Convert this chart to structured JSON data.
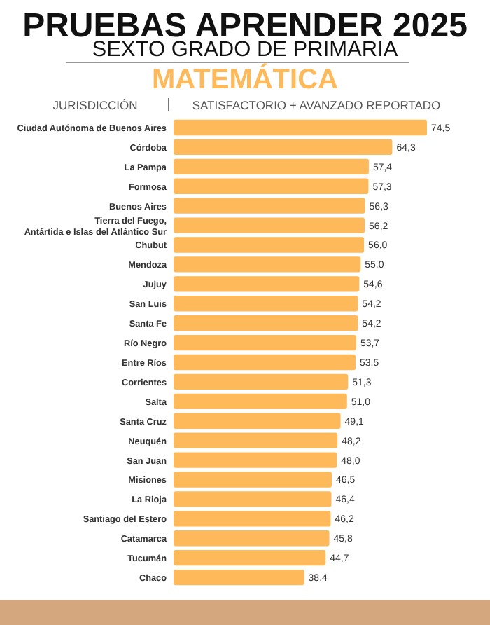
{
  "chart_data": {
    "type": "bar",
    "orientation": "horizontal",
    "title": "PRUEBAS APRENDER 2025",
    "subtitle": "SEXTO GRADO DE PRIMARIA",
    "annotations": [
      "MATEMÁTICA"
    ],
    "ylabel": "JURISDICCIÓN",
    "xlabel": "SATISFACTORIO + AVANZADO REPORTADO",
    "categories": [
      "Ciudad Autónoma de Buenos Aires",
      "Córdoba",
      "La Pampa",
      "Formosa",
      "Buenos Aires",
      "Tierra del Fuego, Antártida e Islas del Atlántico Sur",
      "Chubut",
      "Mendoza",
      "Jujuy",
      "San Luis",
      "Santa Fe",
      "Río Negro",
      "Entre Ríos",
      "Corrientes",
      "Salta",
      "Santa Cruz",
      "Neuquén",
      "San Juan",
      "Misiones",
      "La Rioja",
      "Santiago del Estero",
      "Catamarca",
      "Tucumán",
      "Chaco"
    ],
    "values": [
      74.5,
      64.3,
      57.4,
      57.3,
      56.3,
      56.2,
      56.0,
      55.0,
      54.6,
      54.2,
      54.2,
      53.7,
      53.5,
      51.3,
      51.0,
      49.1,
      48.2,
      48.0,
      46.5,
      46.4,
      46.2,
      45.8,
      44.7,
      38.4
    ],
    "value_labels": [
      "74,5",
      "64,3",
      "57,4",
      "57,3",
      "56,3",
      "56,2",
      "56,0",
      "55,0",
      "54,6",
      "54,2",
      "54,2",
      "53,7",
      "53,5",
      "51,3",
      "51,0",
      "49,1",
      "48,2",
      "48,0",
      "46,5",
      "46,4",
      "46,2",
      "45,8",
      "44,7",
      "38,4"
    ],
    "color": "#fdb95a",
    "xlim": [
      0,
      74.5
    ],
    "tick_labels": "y"
  }
}
